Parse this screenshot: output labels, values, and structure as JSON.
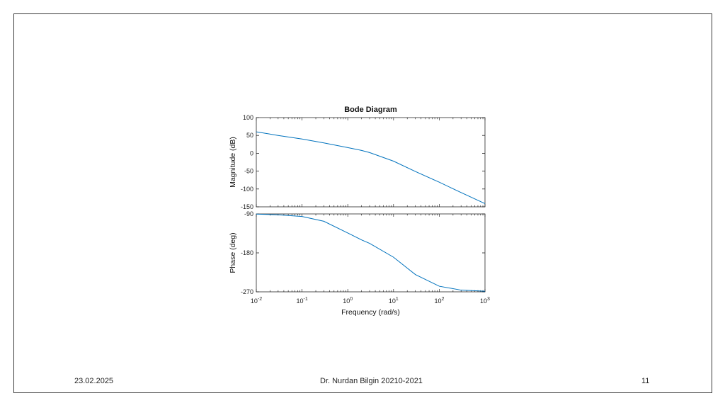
{
  "footer": {
    "date": "23.02.2025",
    "author": "Dr. Nurdan Bilgin 20210-2021",
    "page": "11"
  },
  "colors": {
    "line": "#0072bd",
    "axes": "#262626",
    "border": "#3a3a3a"
  },
  "chart_data": {
    "type": "line",
    "title": "Bode Diagram",
    "xlabel": "Frequency  (rad/s)",
    "xscale": "log",
    "xlim": [
      0.01,
      1000
    ],
    "xtick_exponents": [
      "-2",
      "-1",
      "0",
      "1",
      "2",
      "3"
    ],
    "xtick_base": "10",
    "grid": false,
    "panels": [
      {
        "name": "magnitude",
        "ylabel": "Magnitude (dB)",
        "ylim": [
          -150,
          100
        ],
        "yticks": [
          "100",
          "50",
          "0",
          "-50",
          "-100",
          "-150"
        ],
        "series": [
          {
            "x": [
              0.01,
              0.03,
              0.1,
              0.3,
              1,
              2,
              3,
              10,
              30,
              100,
              300,
              1000
            ],
            "values": [
              60,
              50,
              40,
              29,
              16,
              8,
              2,
              -22,
              -51,
              -81,
              -110,
              -141
            ]
          }
        ]
      },
      {
        "name": "phase",
        "ylabel": "Phase (deg)",
        "ylim": [
          -270,
          -90
        ],
        "yticks": [
          "-90",
          "-180",
          "-270"
        ],
        "series": [
          {
            "x": [
              0.01,
              0.03,
              0.1,
              0.3,
              1,
              2,
              3,
              10,
              30,
              100,
              300,
              1000
            ],
            "values": [
              -90.5,
              -92,
              -96,
              -107,
              -134,
              -150,
              -158,
              -190,
              -230,
              -257,
              -266,
              -268.5
            ]
          }
        ]
      }
    ]
  }
}
